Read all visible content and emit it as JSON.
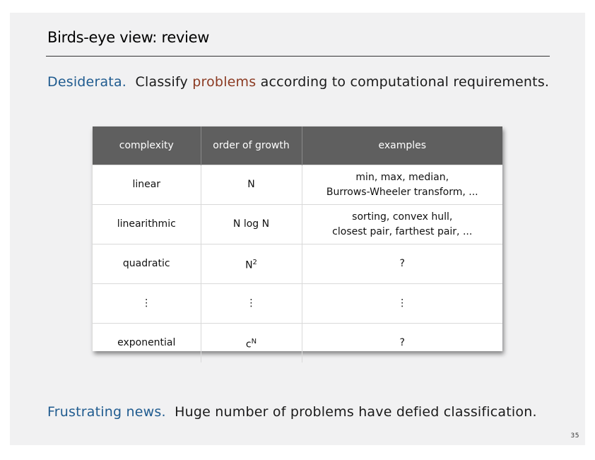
{
  "title": "Birds-eye view:  review",
  "desiderata": {
    "label": "Desiderata.",
    "pre": "Classify",
    "highlight": "problems",
    "post": "according to computational requirements."
  },
  "table": {
    "headers": [
      "complexity",
      "order of growth",
      "examples"
    ],
    "rows": [
      {
        "complexity": "linear",
        "growth": "N",
        "growth_sup": "",
        "examples": [
          "min, max, median,",
          "Burrows-Wheeler transform, ..."
        ]
      },
      {
        "complexity": "linearithmic",
        "growth": "N log N",
        "growth_sup": "",
        "examples": [
          "sorting, convex hull,",
          "closest pair, farthest pair, ..."
        ]
      },
      {
        "complexity": "quadratic",
        "growth": "N",
        "growth_sup": "2",
        "examples": [
          "?"
        ]
      },
      {
        "complexity": "⋮",
        "growth": "⋮",
        "growth_sup": "",
        "examples": [
          "⋮"
        ]
      },
      {
        "complexity": "exponential",
        "growth": "c",
        "growth_sup": "N",
        "examples": [
          "?"
        ]
      }
    ]
  },
  "frustrating": {
    "label": "Frustrating news.",
    "text": "Huge number of problems have defied classification."
  },
  "page_number": "35"
}
